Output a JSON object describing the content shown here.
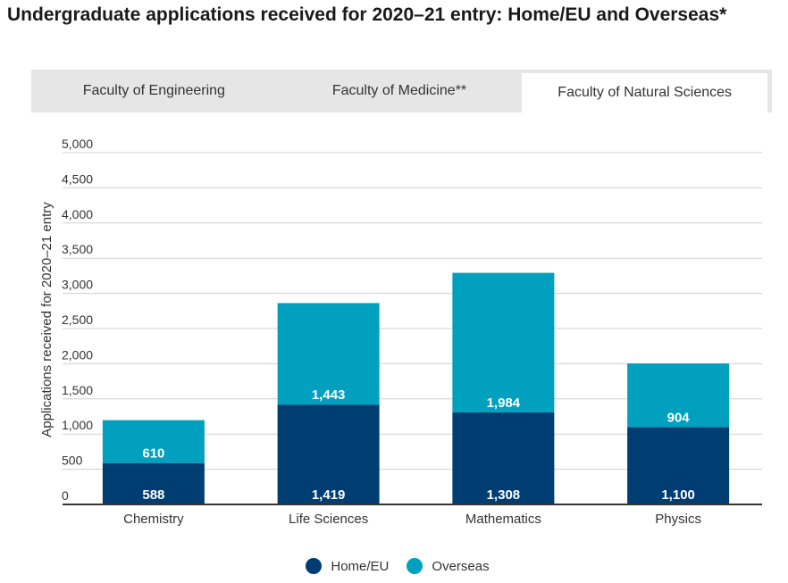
{
  "title": "Undergraduate applications received for 2020–21 entry: Home/EU and Overseas*",
  "tabs": [
    {
      "label": "Faculty of Engineering",
      "active": false
    },
    {
      "label": "Faculty of Medicine**",
      "active": false
    },
    {
      "label": "Faculty of Natural Sciences",
      "active": true
    }
  ],
  "colors": {
    "home_eu": "#003d73",
    "overseas": "#00a0be",
    "grid": "#cfcfcf",
    "axis": "#333333",
    "bar_label": "#ffffff"
  },
  "chart_data": {
    "type": "bar",
    "stacked": true,
    "categories": [
      "Chemistry",
      "Life Sciences",
      "Mathematics",
      "Physics"
    ],
    "series": [
      {
        "name": "Home/EU",
        "values": [
          588,
          1419,
          1308,
          1100
        ]
      },
      {
        "name": "Overseas",
        "values": [
          610,
          1443,
          1984,
          904
        ]
      }
    ],
    "ylabel": "Applications received for 2020–21 entry",
    "xlabel": "",
    "ylim": [
      0,
      5000
    ],
    "yticks": [
      0,
      500,
      1000,
      1500,
      2000,
      2500,
      3000,
      3500,
      4000,
      4500,
      5000
    ],
    "ytick_labels": [
      "0",
      "500",
      "1,000",
      "1,500",
      "2,000",
      "2,500",
      "3,000",
      "3,500",
      "4,000",
      "4,500",
      "5,000"
    ],
    "bar_labels": {
      "Home/EU": [
        "588",
        "1,419",
        "1,308",
        "1,100"
      ],
      "Overseas": [
        "610",
        "1,443",
        "1,984",
        "904"
      ]
    },
    "grid": true,
    "legend_position": "bottom"
  }
}
